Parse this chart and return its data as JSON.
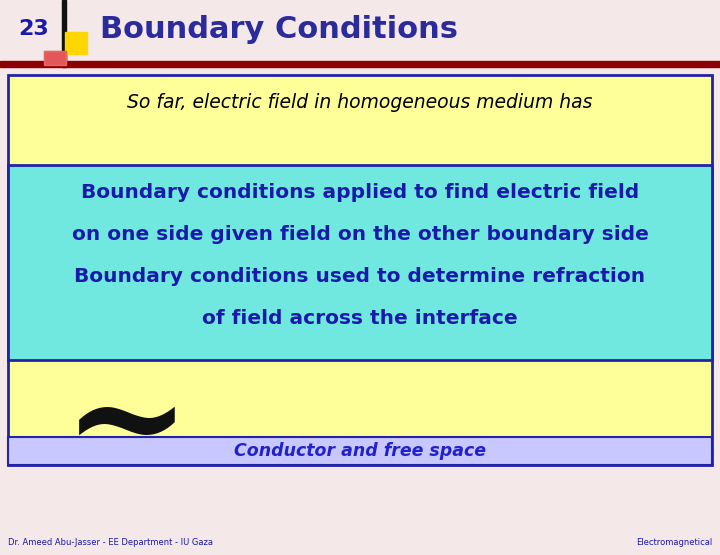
{
  "background_color": "#F5E8E8",
  "title": "Boundary Conditions",
  "slide_number": "23",
  "title_color": "#2B2B9B",
  "title_fontsize": 22,
  "slide_number_color": "#1a1aaa",
  "header_line_color": "#8B0000",
  "yellow_box_color": "#FFFF99",
  "yellow_box_border": "#2222AA",
  "cyan_box_color": "#70E8E0",
  "cyan_box_border": "#2222AA",
  "blue_strip_color": "#C8C8FF",
  "blue_strip_border": "#2222AA",
  "text_so_far": "So far, electric field in homogeneous medium has",
  "text_so_far_color": "#000000",
  "highlight_text_line1": "Boundary conditions applied to find electric field",
  "highlight_text_line2": "on one side given field on the other boundary side",
  "highlight_text_line3": "Boundary conditions used to determine refraction",
  "highlight_text_line4": "of field across the interface",
  "highlight_text_color": "#1a1aaa",
  "text_conductor": "Conductor and free space",
  "text_conductor_color": "#2222CC",
  "footer_left": "Dr. Ameed Abu-Jasser - EE Department - IU Gaza",
  "footer_right": "Electromagnetical",
  "footer_color": "#1a1aaa",
  "logo_yellow_color": "#FFD700",
  "logo_red_color": "#CC2222",
  "logo_black_color": "#111111"
}
